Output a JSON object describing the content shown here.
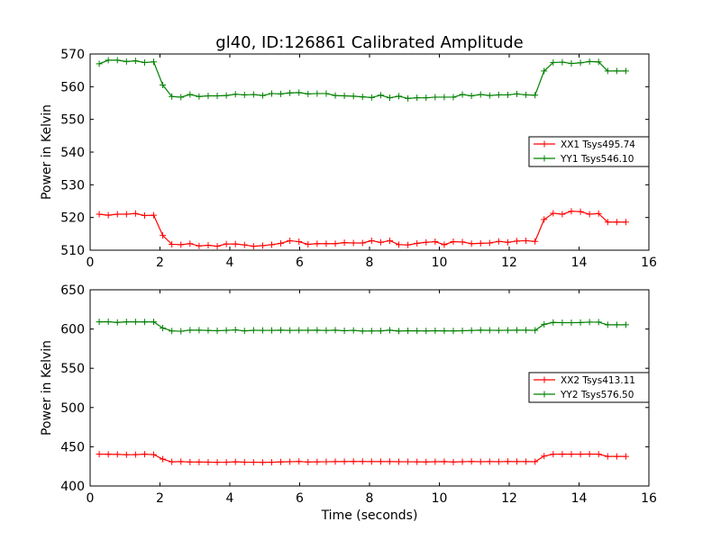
{
  "title": "gl40, ID:126861 Calibrated Amplitude",
  "chart_data": [
    {
      "type": "line",
      "title": "gl40, ID:126861 Calibrated Amplitude",
      "xlabel": "",
      "ylabel": "Power in Kelvin",
      "xlim": [
        0,
        16
      ],
      "ylim": [
        510,
        570
      ],
      "xticks": [
        0,
        2,
        4,
        6,
        8,
        10,
        12,
        14,
        16
      ],
      "yticks": [
        510,
        520,
        530,
        540,
        550,
        560,
        570
      ],
      "grid": false,
      "legend_position": "center-right",
      "x": [
        0.26,
        0.52,
        0.78,
        1.04,
        1.3,
        1.56,
        1.82,
        2.08,
        2.34,
        2.6,
        2.86,
        3.12,
        3.38,
        3.64,
        3.9,
        4.16,
        4.42,
        4.68,
        4.94,
        5.2,
        5.46,
        5.72,
        5.98,
        6.24,
        6.5,
        6.76,
        7.02,
        7.28,
        7.54,
        7.8,
        8.06,
        8.32,
        8.58,
        8.84,
        9.1,
        9.36,
        9.62,
        9.88,
        10.14,
        10.4,
        10.66,
        10.92,
        11.18,
        11.44,
        11.7,
        11.96,
        12.22,
        12.48,
        12.74,
        13.0,
        13.26,
        13.52,
        13.78,
        14.04,
        14.3,
        14.56,
        14.82,
        15.08,
        15.34
      ],
      "series": [
        {
          "name": "XX1 Tsys495.74",
          "color": "#ff0000",
          "values": [
            521.0,
            520.7,
            521.0,
            521.0,
            521.2,
            520.6,
            520.7,
            514.5,
            511.8,
            511.7,
            512.0,
            511.3,
            511.5,
            511.2,
            511.9,
            511.9,
            511.6,
            511.2,
            511.4,
            511.7,
            512.1,
            512.9,
            512.6,
            511.8,
            512.0,
            512.0,
            512.0,
            512.3,
            512.2,
            512.2,
            512.9,
            512.4,
            512.9,
            511.7,
            511.6,
            512.1,
            512.4,
            512.6,
            511.7,
            512.6,
            512.5,
            512.0,
            512.1,
            512.2,
            512.7,
            512.4,
            512.8,
            512.9,
            512.7,
            519.4,
            521.3,
            521.0,
            521.9,
            521.8,
            521.0,
            521.2,
            518.6,
            518.6,
            518.6
          ]
        },
        {
          "name": "YY1 Tsys546.10",
          "color": "#008000",
          "values": [
            567.0,
            568.1,
            568.1,
            567.7,
            567.9,
            567.4,
            567.6,
            560.5,
            557.0,
            556.8,
            557.6,
            557.0,
            557.2,
            557.2,
            557.3,
            557.7,
            557.5,
            557.6,
            557.3,
            557.9,
            557.8,
            558.1,
            558.2,
            557.8,
            557.9,
            557.9,
            557.3,
            557.2,
            557.1,
            556.9,
            556.7,
            557.4,
            556.6,
            557.1,
            556.4,
            556.6,
            556.6,
            556.8,
            556.8,
            556.8,
            557.6,
            557.2,
            557.6,
            557.3,
            557.5,
            557.5,
            557.8,
            557.5,
            557.4,
            564.8,
            567.4,
            567.5,
            567.1,
            567.3,
            567.7,
            567.6,
            564.8,
            564.8,
            564.8
          ]
        }
      ]
    },
    {
      "type": "line",
      "title": "",
      "xlabel": "Time (seconds)",
      "ylabel": "Power in Kelvin",
      "xlim": [
        0,
        16
      ],
      "ylim": [
        400,
        650
      ],
      "xticks": [
        0,
        2,
        4,
        6,
        8,
        10,
        12,
        14,
        16
      ],
      "yticks": [
        400,
        450,
        500,
        550,
        600,
        650
      ],
      "grid": false,
      "legend_position": "center-right",
      "x": [
        0.26,
        0.52,
        0.78,
        1.04,
        1.3,
        1.56,
        1.82,
        2.08,
        2.34,
        2.6,
        2.86,
        3.12,
        3.38,
        3.64,
        3.9,
        4.16,
        4.42,
        4.68,
        4.94,
        5.2,
        5.46,
        5.72,
        5.98,
        6.24,
        6.5,
        6.76,
        7.02,
        7.28,
        7.54,
        7.8,
        8.06,
        8.32,
        8.58,
        8.84,
        9.1,
        9.36,
        9.62,
        9.88,
        10.14,
        10.4,
        10.66,
        10.92,
        11.18,
        11.44,
        11.7,
        11.96,
        12.22,
        12.48,
        12.74,
        13.0,
        13.26,
        13.52,
        13.78,
        14.04,
        14.3,
        14.56,
        14.82,
        15.08,
        15.34
      ],
      "series": [
        {
          "name": "XX2 Tsys413.11",
          "color": "#ff0000",
          "values": [
            440.5,
            440.4,
            440.3,
            439.9,
            440.0,
            440.5,
            440.0,
            434.2,
            430.8,
            431.1,
            430.6,
            430.5,
            430.4,
            430.2,
            430.3,
            430.8,
            430.4,
            430.3,
            430.1,
            430.3,
            430.7,
            431.0,
            431.2,
            430.6,
            430.8,
            430.9,
            431.1,
            431.1,
            431.3,
            431.2,
            431.1,
            431.1,
            431.1,
            431.0,
            430.9,
            430.8,
            430.7,
            431.0,
            431.1,
            430.6,
            431.0,
            431.2,
            431.0,
            431.1,
            431.0,
            431.2,
            431.1,
            431.1,
            431.0,
            438.1,
            440.5,
            440.6,
            440.6,
            440.5,
            440.7,
            440.5,
            437.7,
            437.7,
            437.7
          ]
        },
        {
          "name": "YY2 Tsys576.50",
          "color": "#008000",
          "values": [
            609.1,
            609.3,
            608.4,
            609.1,
            609.1,
            609.0,
            609.2,
            601.3,
            597.6,
            597.2,
            598.6,
            598.5,
            598.2,
            597.8,
            598.3,
            598.9,
            597.7,
            598.4,
            598.3,
            598.3,
            598.5,
            598.3,
            598.4,
            598.4,
            598.5,
            598.2,
            598.5,
            597.8,
            598.3,
            597.4,
            597.6,
            597.7,
            598.5,
            597.4,
            597.8,
            597.7,
            597.6,
            597.8,
            597.7,
            597.6,
            597.8,
            598.2,
            598.5,
            598.4,
            598.3,
            598.4,
            598.5,
            598.5,
            598.4,
            606.0,
            608.4,
            608.1,
            608.1,
            608.3,
            608.8,
            608.8,
            605.4,
            605.4,
            605.4
          ]
        }
      ]
    }
  ]
}
